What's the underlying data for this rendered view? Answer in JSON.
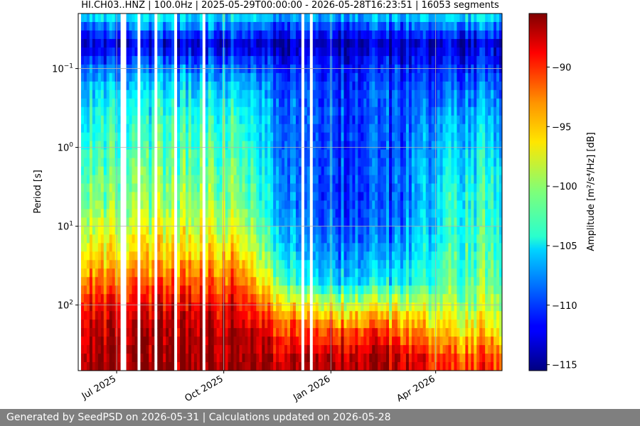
{
  "chart_data": {
    "type": "heatmap",
    "title": "HI.CH03..HNZ | 100.0Hz | 2025-05-29T00:00:00 - 2026-05-28T16:23:51 | 16053 segments",
    "ylabel": "Period [s]",
    "y_scale": "log",
    "y_axis_inverted": true,
    "ylim": [
      0.02,
      680
    ],
    "y_ticks": [
      {
        "value": 0.1,
        "base": "10",
        "exp": "−1"
      },
      {
        "value": 1,
        "base": "10",
        "exp": "0"
      },
      {
        "value": 10,
        "base": "10",
        "exp": "1"
      },
      {
        "value": 100,
        "base": "10",
        "exp": "2"
      }
    ],
    "xlim": [
      "2025-05-29",
      "2026-05-28"
    ],
    "x_ticks": [
      {
        "date": "2025-07-01",
        "label": "Jul 2025"
      },
      {
        "date": "2025-10-01",
        "label": "Oct 2025"
      },
      {
        "date": "2026-01-01",
        "label": "Jan 2026"
      },
      {
        "date": "2026-04-01",
        "label": "Apr 2026"
      }
    ],
    "grid": true,
    "colormap": "jet",
    "colorbar": {
      "label": "Amplitude [m²/s⁴/Hz] [dB]",
      "range": [
        -115.5,
        -85.5
      ],
      "ticks": [
        -90,
        -95,
        -100,
        -105,
        -110,
        -115
      ]
    },
    "profiles": {
      "period_s": [
        0.02,
        0.03,
        0.05,
        0.1,
        0.2,
        0.5,
        1,
        2,
        5,
        10,
        20,
        50,
        100,
        200,
        500
      ],
      "summer_2025_db": [
        -104,
        -108,
        -113,
        -108,
        -105,
        -103,
        -102,
        -101,
        -100,
        -98,
        -96,
        -92,
        -89,
        -87,
        -86
      ],
      "winter_2026_db": [
        -106,
        -110,
        -114,
        -111,
        -110,
        -110,
        -110,
        -110,
        -110,
        -109,
        -108,
        -105,
        -98,
        -92,
        -87
      ],
      "spring_2026_db": [
        -104,
        -108,
        -113,
        -110,
        -108,
        -106,
        -105,
        -104,
        -103,
        -103,
        -102,
        -101,
        -99,
        -96,
        -91
      ]
    }
  },
  "footer": {
    "text": "Generated by SeedPSD on 2026-05-31 | Calculations updated on 2026-05-28"
  }
}
